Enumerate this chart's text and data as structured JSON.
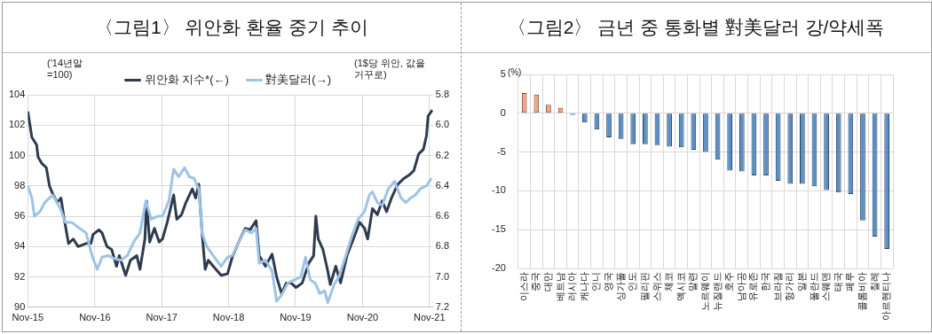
{
  "chart_data": [
    {
      "type": "line",
      "title": "〈그림1〉 위안화 환율 중기 추이",
      "annotations": [
        "('14년말 =100)",
        "(1$당 위안, 값을 거꾸로)"
      ],
      "marker": "none",
      "grid": true,
      "legend": "top",
      "xlim": [
        "2015-11-01",
        "2021-11-20"
      ],
      "xticks": [
        {
          "value": "2015-11",
          "label": "Nov-15"
        },
        {
          "value": "2016-11",
          "label": "Nov-16"
        },
        {
          "value": "2017-11",
          "label": "Nov-17"
        },
        {
          "value": "2018-11",
          "label": "Nov-18"
        },
        {
          "value": "2019-11",
          "label": "Nov-19"
        },
        {
          "value": "2020-11",
          "label": "Nov-20"
        },
        {
          "value": "2021-11",
          "label": "Nov-21"
        }
      ],
      "ylim": [
        90,
        104
      ],
      "yticks": [
        90,
        92,
        94,
        96,
        98,
        100,
        102,
        104
      ],
      "y2lim": [
        7.2,
        5.8
      ],
      "y2ticks": [
        {
          "value": 7.2,
          "label": "7.2"
        },
        {
          "value": 7.0,
          "label": "7.0"
        },
        {
          "value": 6.8,
          "label": "6.8"
        },
        {
          "value": 6.6,
          "label": "6.6"
        },
        {
          "value": 6.4,
          "label": "6.4"
        },
        {
          "value": 6.2,
          "label": "6.2"
        },
        {
          "value": 6.0,
          "label": "6.0"
        },
        {
          "value": 5.8,
          "label": "5.8"
        }
      ],
      "series": [
        {
          "name": "위안화 지수*(←)",
          "color": "#2e3a4e",
          "x": [
            "2015-11-01",
            "2015-11-23",
            "2015-12-19",
            "2015-12-27",
            "2016-01-15",
            "2016-02-10",
            "2016-02-27",
            "2016-03-15",
            "2016-04-10",
            "2016-04-30",
            "2016-05-15",
            "2016-06-10",
            "2016-07-06",
            "2016-08-01",
            "2016-09-14",
            "2016-10-10",
            "2016-10-22",
            "2016-11-23",
            "2016-12-10",
            "2017-01-06",
            "2017-02-01",
            "2017-02-27",
            "2017-03-14",
            "2017-04-18",
            "2017-05-14",
            "2017-06-18",
            "2017-07-05",
            "2017-08-01",
            "2017-08-10",
            "2017-08-27",
            "2017-09-22",
            "2017-10-18",
            "2017-11-05",
            "2017-12-01",
            "2018-01-05",
            "2018-01-22",
            "2018-02-17",
            "2018-03-13",
            "2018-04-17",
            "2018-05-05",
            "2018-05-22",
            "2018-06-09",
            "2018-06-26",
            "2018-07-13",
            "2018-08-09",
            "2018-09-21",
            "2018-10-26",
            "2018-11-21",
            "2018-12-26",
            "2019-01-31",
            "2019-02-26",
            "2019-03-31",
            "2019-04-17",
            "2019-05-21",
            "2019-06-26",
            "2019-07-21",
            "2019-08-17",
            "2019-09-12",
            "2019-10-08",
            "2019-11-04",
            "2019-12-08",
            "2020-01-12",
            "2020-02-08",
            "2020-02-20",
            "2020-03-04",
            "2020-03-30",
            "2020-04-25",
            "2020-05-09",
            "2020-06-08",
            "2020-07-04",
            "2020-08-08",
            "2020-09-12",
            "2020-10-16",
            "2020-11-12",
            "2020-11-29",
            "2020-12-25",
            "2021-01-21",
            "2021-02-16",
            "2021-03-12",
            "2021-04-08",
            "2021-05-12",
            "2021-06-16",
            "2021-07-12",
            "2021-08-08",
            "2021-09-03",
            "2021-09-29",
            "2021-10-16",
            "2021-10-25",
            "2021-11-17"
          ],
          "values": [
            102.9,
            101.2,
            100.7,
            99.9,
            99.5,
            99.2,
            98.0,
            97.5,
            96.9,
            97.2,
            96.0,
            94.2,
            94.5,
            94.0,
            94.2,
            94.2,
            94.8,
            95.1,
            94.9,
            94.0,
            93.8,
            92.7,
            93.4,
            92.1,
            93.1,
            93.4,
            92.5,
            94.5,
            97.0,
            94.3,
            95.2,
            94.3,
            94.5,
            95.6,
            97.4,
            95.8,
            96.1,
            96.9,
            97.8,
            97.2,
            98.1,
            94.9,
            92.5,
            93.1,
            92.7,
            92.1,
            92.2,
            93.3,
            94.3,
            95.2,
            95.1,
            95.7,
            93.4,
            92.7,
            93.5,
            92.0,
            90.9,
            91.6,
            91.6,
            91.3,
            91.6,
            92.9,
            93.4,
            96.0,
            94.5,
            93.8,
            92.4,
            91.5,
            92.7,
            91.6,
            93.4,
            94.5,
            95.6,
            95.2,
            94.5,
            96.5,
            96.1,
            97.0,
            96.3,
            97.2,
            98.1,
            98.5,
            98.7,
            99.0,
            100.1,
            100.4,
            101.3,
            102.6,
            103.0
          ]
        },
        {
          "name": "對美달러(→)",
          "color": "#9dc3e6",
          "axis": "y2",
          "x": [
            "2015-11-01",
            "2015-11-23",
            "2015-12-07",
            "2016-01-06",
            "2016-02-01",
            "2016-03-15",
            "2016-04-27",
            "2016-05-23",
            "2016-06-27",
            "2016-08-10",
            "2016-09-14",
            "2016-10-19",
            "2016-11-14",
            "2016-12-10",
            "2017-01-14",
            "2017-02-17",
            "2017-03-23",
            "2017-04-27",
            "2017-06-01",
            "2017-07-05",
            "2017-08-06",
            "2017-09-05",
            "2017-10-10",
            "2017-11-05",
            "2017-12-10",
            "2018-01-05",
            "2018-02-01",
            "2018-03-05",
            "2018-04-01",
            "2018-04-26",
            "2018-05-22",
            "2018-06-09",
            "2018-07-05",
            "2018-08-09",
            "2018-09-21",
            "2018-10-26",
            "2018-11-21",
            "2018-12-26",
            "2019-01-31",
            "2019-03-05",
            "2019-03-31",
            "2019-04-17",
            "2019-05-21",
            "2019-06-26",
            "2019-07-21",
            "2019-08-17",
            "2019-09-21",
            "2019-10-26",
            "2019-11-30",
            "2019-12-26",
            "2020-01-21",
            "2020-02-16",
            "2020-03-13",
            "2020-04-08",
            "2020-04-25",
            "2020-05-30",
            "2020-06-25",
            "2020-07-30",
            "2020-09-04",
            "2020-10-08",
            "2020-11-12",
            "2020-12-08",
            "2020-12-25",
            "2021-01-21",
            "2021-02-16",
            "2021-03-21",
            "2021-04-25",
            "2021-05-30",
            "2021-06-25",
            "2021-07-21",
            "2021-08-16",
            "2021-09-12",
            "2021-10-16",
            "2021-11-12"
          ],
          "values": [
            6.4,
            6.48,
            6.6,
            6.57,
            6.51,
            6.46,
            6.55,
            6.64,
            6.64,
            6.68,
            6.71,
            6.87,
            6.95,
            6.87,
            6.86,
            6.88,
            6.89,
            6.86,
            6.77,
            6.71,
            6.5,
            6.62,
            6.6,
            6.6,
            6.5,
            6.29,
            6.34,
            6.28,
            6.34,
            6.35,
            6.42,
            6.71,
            6.8,
            6.86,
            6.93,
            6.87,
            6.86,
            6.77,
            6.69,
            6.71,
            6.68,
            6.91,
            6.89,
            6.96,
            7.16,
            7.12,
            7.04,
            7.02,
            7.0,
            6.87,
            7.02,
            7.04,
            7.11,
            7.09,
            7.17,
            7.05,
            7.0,
            6.87,
            6.73,
            6.62,
            6.57,
            6.46,
            6.44,
            6.51,
            6.53,
            6.42,
            6.37,
            6.48,
            6.51,
            6.48,
            6.46,
            6.42,
            6.4,
            6.35
          ]
        }
      ]
    },
    {
      "type": "bar",
      "title": "〈그림2〉 금년 중 통화별 對美달러 강/약세폭",
      "ylabel": "(%)",
      "grid": true,
      "ylim": [
        -20,
        5
      ],
      "yticks": [
        -20,
        -15,
        -10,
        -5,
        0,
        5
      ],
      "categories": [
        "이스라",
        "중국",
        "대만",
        "베트남",
        "러시아",
        "캐나다",
        "인니",
        "영국",
        "싱가폴",
        "인도",
        "필리핀",
        "스위스",
        "체코",
        "멕시코",
        "말련",
        "노르웨이",
        "뉴질랜드",
        "호주",
        "남아공",
        "유로존",
        "한국",
        "브라질",
        "헝가리",
        "일본",
        "폴란드",
        "스웨덴",
        "태국",
        "페루",
        "콜롬비아",
        "칠레",
        "아르헨티나"
      ],
      "values": [
        2.6,
        2.4,
        1.1,
        0.7,
        -0.2,
        -1.2,
        -2.1,
        -3.1,
        -3.3,
        -4.0,
        -4.0,
        -4.1,
        -4.3,
        -4.4,
        -4.7,
        -5.0,
        -6.0,
        -7.4,
        -7.5,
        -8.0,
        -8.0,
        -8.7,
        -9.1,
        -9.1,
        -9.4,
        -9.9,
        -10.2,
        -10.4,
        -13.8,
        -15.9,
        -17.5
      ],
      "colors": [
        "#f4a582",
        "#f4a582",
        "#f4a582",
        "#f4a582",
        "#5b8fc7",
        "#5b8fc7",
        "#5b8fc7",
        "#5b8fc7",
        "#5b8fc7",
        "#5b8fc7",
        "#5b8fc7",
        "#5b8fc7",
        "#5b8fc7",
        "#5b8fc7",
        "#5b8fc7",
        "#5b8fc7",
        "#5b8fc7",
        "#5b8fc7",
        "#5b8fc7",
        "#5b8fc7",
        "#5b8fc7",
        "#5b8fc7",
        "#5b8fc7",
        "#5b8fc7",
        "#5b8fc7",
        "#5b8fc7",
        "#5b8fc7",
        "#5b8fc7",
        "#5b8fc7",
        "#5b8fc7",
        "#5b8fc7"
      ]
    }
  ]
}
